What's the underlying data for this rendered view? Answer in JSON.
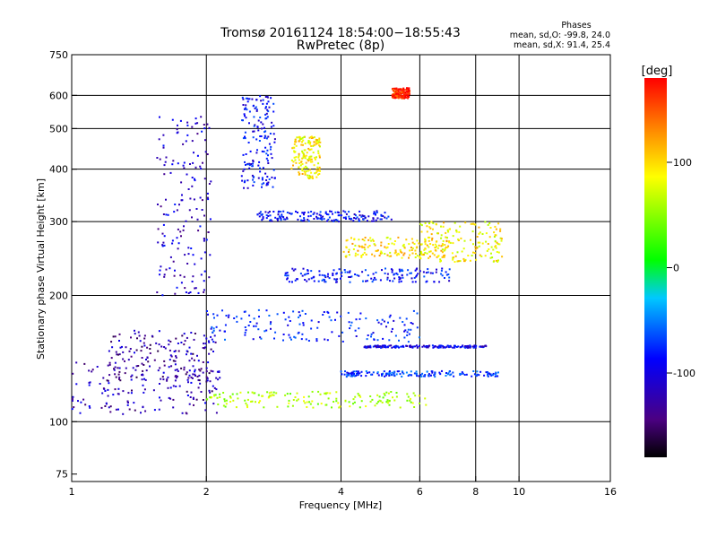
{
  "title_line1": "Tromsø 20161124 18:54:00−18:55:43",
  "title_line2": "RwPretec (8p)",
  "stats": {
    "heading": "Phases",
    "line_o": "mean, sd,O: -99.8, 24.0",
    "line_x": "mean, sd,X:  91.4, 25.4"
  },
  "colorbar": {
    "unit": "[deg]",
    "range": [
      -180,
      180
    ],
    "tick_labels": [
      "100",
      "0",
      "-100"
    ],
    "tick_values": [
      100,
      0,
      -100
    ]
  },
  "chart_data": {
    "type": "scatter",
    "title": "Tromsø 20161124 18:54:00−18:55:43",
    "subtitle": "RwPretec (8p)",
    "xlabel": "Frequency [MHz]",
    "ylabel": "Stationary phase Virtual Height [km]",
    "xscale": "log",
    "yscale": "log",
    "xlim": [
      1,
      16
    ],
    "ylim": [
      72,
      750
    ],
    "xticks": [
      1,
      2,
      4,
      6,
      8,
      10,
      16
    ],
    "xtick_labels": [
      "1",
      "2",
      "4",
      "6",
      "8",
      "10",
      "16"
    ],
    "xgrid": [
      2,
      4,
      6,
      8,
      10
    ],
    "yticks": [
      75,
      100,
      200,
      300,
      400,
      500,
      600,
      750
    ],
    "ytick_labels": [
      "75",
      "100",
      "200",
      "300",
      "400",
      "500",
      "600",
      "750"
    ],
    "ygrid": [
      100,
      200,
      300,
      400,
      500,
      600
    ],
    "color_encoding": "phase [deg], colour scale -180 to 180",
    "clusters": [
      {
        "trace": "low E/F1 trace",
        "x_range": [
          1.0,
          2.15
        ],
        "y_range": [
          104,
          140
        ],
        "phase_deg": -130
      },
      {
        "trace": "low trace upper band",
        "x_range": [
          1.2,
          2.1
        ],
        "y_range": [
          125,
          165
        ],
        "phase_deg": -135
      },
      {
        "trace": "F1 trace",
        "x_range": [
          2.0,
          6.2
        ],
        "y_range": [
          108,
          118
        ],
        "phase_deg": 60
      },
      {
        "trace": "F trace near 2 MHz",
        "x_range": [
          1.55,
          2.05
        ],
        "y_range": [
          200,
          540
        ],
        "phase_deg": -120
      },
      {
        "trace": "F trace near 2.5 MHz",
        "x_range": [
          2.4,
          2.85
        ],
        "y_range": [
          360,
          600
        ],
        "phase_deg": -100
      },
      {
        "trace": "high-altitude yellow cluster",
        "x_range": [
          3.1,
          3.6
        ],
        "y_range": [
          380,
          480
        ],
        "phase_deg": 95
      },
      {
        "trace": "F2 trace 300 km",
        "x_range": [
          2.6,
          5.2
        ],
        "y_range": [
          300,
          318
        ],
        "phase_deg": -100
      },
      {
        "trace": "F2 trace 250 km",
        "x_range": [
          4.0,
          7.0
        ],
        "y_range": [
          245,
          275
        ],
        "phase_deg": 100
      },
      {
        "trace": "F2 trace 220 km",
        "x_range": [
          3.0,
          7.0
        ],
        "y_range": [
          215,
          232
        ],
        "phase_deg": -95
      },
      {
        "trace": "170 km trace",
        "x_range": [
          2.0,
          6.0
        ],
        "y_range": [
          155,
          185
        ],
        "phase_deg": -90
      },
      {
        "trace": "150 km trace",
        "x_range": [
          4.5,
          8.5
        ],
        "y_range": [
          150,
          152
        ],
        "phase_deg": -110
      },
      {
        "trace": "130 km trace",
        "x_range": [
          4.0,
          9.0
        ],
        "y_range": [
          128,
          132
        ],
        "phase_deg": -80
      },
      {
        "trace": "6-9 MHz traces",
        "x_range": [
          6.0,
          9.2
        ],
        "y_range": [
          240,
          300
        ],
        "phase_deg": 90
      },
      {
        "trace": "red cluster",
        "x_range": [
          5.2,
          5.7
        ],
        "y_range": [
          590,
          625
        ],
        "phase_deg": 170
      }
    ]
  }
}
